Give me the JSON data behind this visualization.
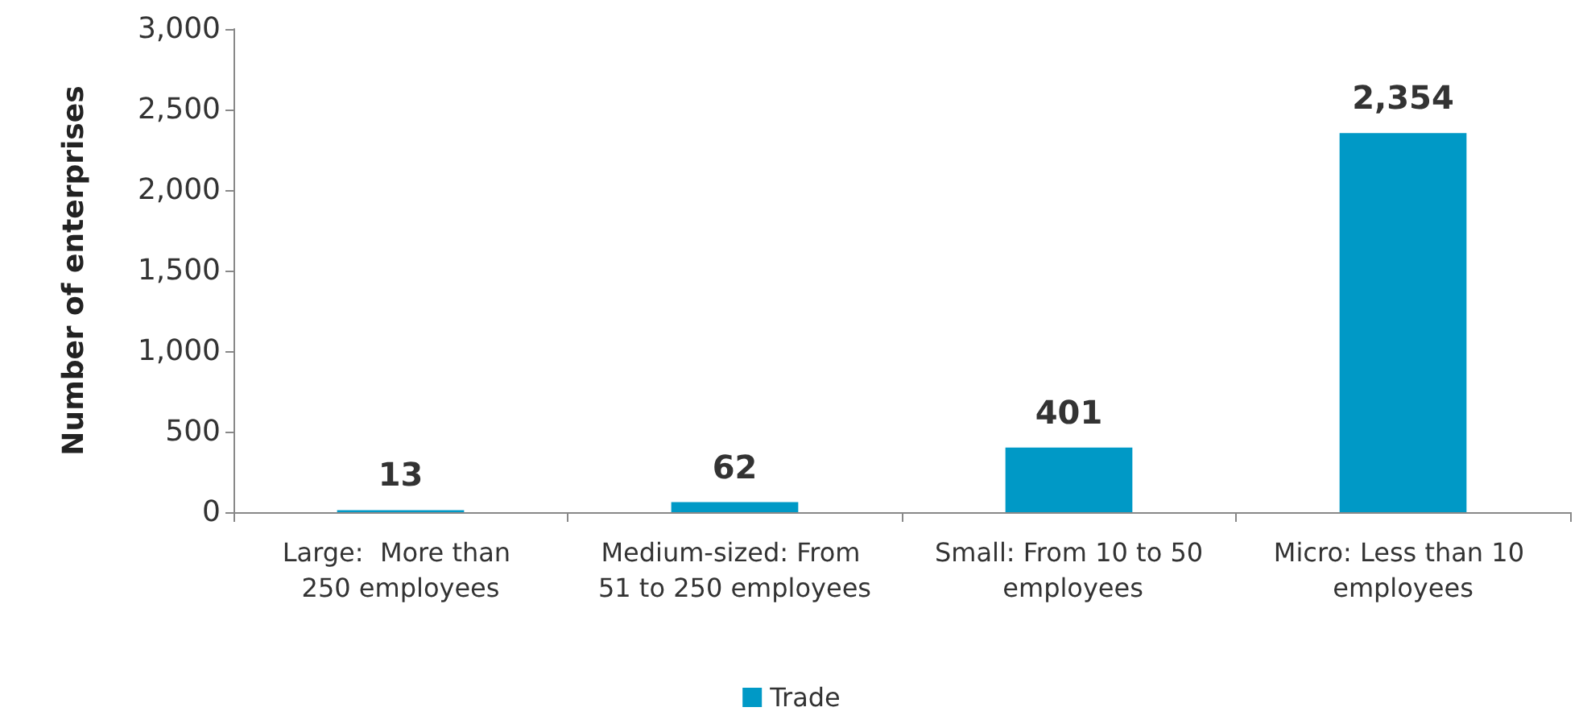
{
  "chart_data": {
    "type": "bar",
    "ylabel": "Number of enterprises",
    "categories": [
      "Large:  More than 250 employees",
      "Medium-sized: From 51 to 250 employees",
      "Small: From 10 to 50 employees",
      "Micro: Less than 10 employees"
    ],
    "series": [
      {
        "name": "Trade",
        "color": "#0099c6",
        "values": [
          13,
          62,
          401,
          2354
        ],
        "value_labels": [
          "13",
          "62",
          "401",
          "2,354"
        ]
      }
    ],
    "ylim": [
      0,
      3000
    ],
    "yticks": [
      0,
      500,
      {
        "value": 1000,
        "label": "1,000"
      },
      {
        "value": 1500,
        "label": "1,500"
      },
      {
        "value": 2000,
        "label": "2,000"
      },
      {
        "value": 2500,
        "label": "2,500"
      },
      {
        "value": 3000,
        "label": "3,000"
      }
    ],
    "grid": false,
    "legend": "bottom"
  }
}
